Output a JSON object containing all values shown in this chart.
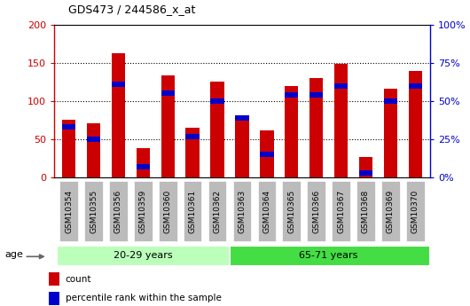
{
  "title": "GDS473 / 244586_x_at",
  "samples": [
    "GSM10354",
    "GSM10355",
    "GSM10356",
    "GSM10359",
    "GSM10360",
    "GSM10361",
    "GSM10362",
    "GSM10363",
    "GSM10364",
    "GSM10365",
    "GSM10366",
    "GSM10367",
    "GSM10368",
    "GSM10369",
    "GSM10370"
  ],
  "count_values": [
    75,
    71,
    163,
    38,
    133,
    65,
    125,
    79,
    62,
    119,
    130,
    149,
    27,
    116,
    139
  ],
  "percentile_values": [
    33,
    25,
    61,
    7,
    55,
    27,
    50,
    39,
    15,
    54,
    54,
    60,
    3,
    50,
    60
  ],
  "group1_label": "20-29 years",
  "group2_label": "65-71 years",
  "group1_count": 7,
  "group2_count": 8,
  "ylim_left": [
    0,
    200
  ],
  "ylim_right": [
    0,
    100
  ],
  "yticks_left": [
    0,
    50,
    100,
    150,
    200
  ],
  "yticks_right": [
    0,
    25,
    50,
    75,
    100
  ],
  "ytick_labels_left": [
    "0",
    "50",
    "100",
    "150",
    "200"
  ],
  "ytick_labels_right": [
    "0%",
    "25%",
    "50%",
    "75%",
    "100%"
  ],
  "bar_color": "#cc0000",
  "percentile_color": "#0000cc",
  "bar_width": 0.55,
  "tick_bg_color": "#bbbbbb",
  "group1_bg": "#bbffbb",
  "group2_bg": "#44dd44",
  "legend_count_label": "count",
  "legend_percentile_label": "percentile rank within the sample",
  "age_label": "age"
}
